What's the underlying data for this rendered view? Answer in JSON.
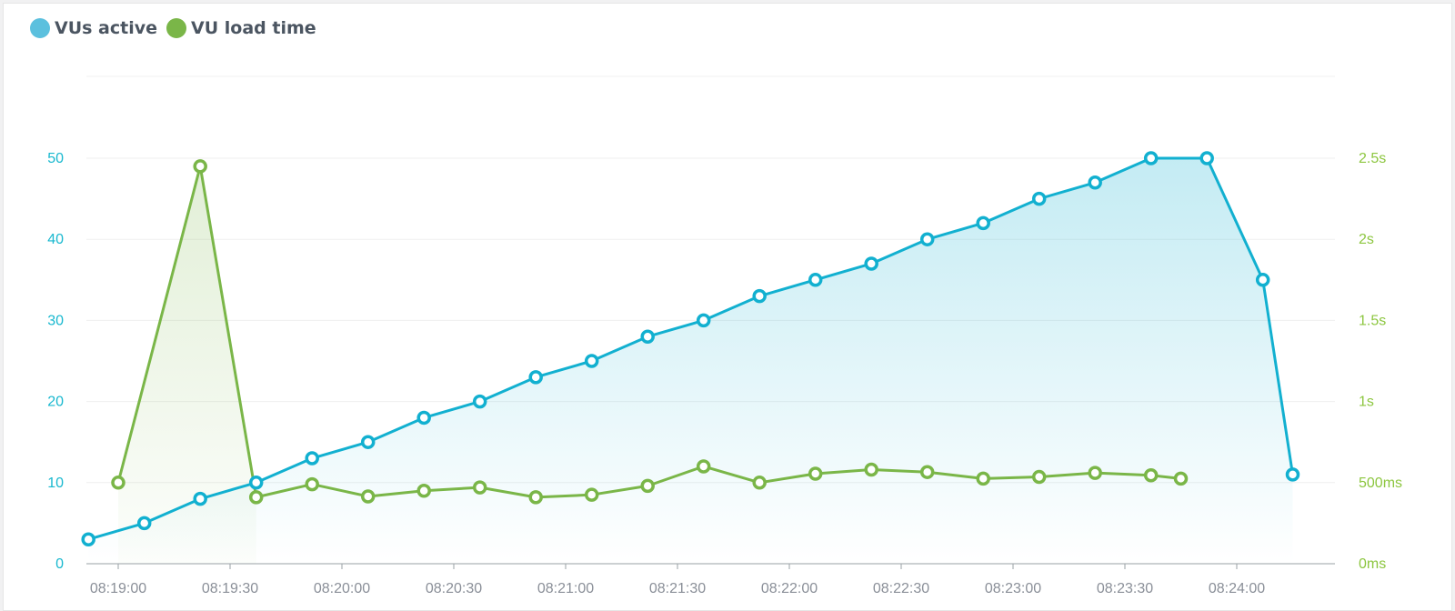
{
  "legend": [
    {
      "label": "VUs active",
      "color": "#5bc0de"
    },
    {
      "label": "VU load time",
      "color": "#7ab648"
    }
  ],
  "colors": {
    "vus": "#12b0d0",
    "load": "#7ab648",
    "leftAxis": "#18b8cf",
    "rightAxis": "#8cc63f",
    "xAxis": "#8a8f98"
  },
  "chart_data": {
    "type": "line",
    "x_label_ticks": [
      "08:19:00",
      "08:19:30",
      "08:20:00",
      "08:20:30",
      "08:21:00",
      "08:21:30",
      "08:22:00",
      "08:22:30",
      "08:23:00",
      "08:23:30",
      "08:24:00"
    ],
    "y_left": {
      "ticks": [
        "0",
        "10",
        "20",
        "30",
        "40",
        "50"
      ],
      "range": [
        0,
        60
      ]
    },
    "y_right": {
      "ticks": [
        "0ms",
        "500ms",
        "1s",
        "1.5s",
        "2s",
        "2.5s"
      ],
      "range_ms": [
        0,
        3000
      ]
    },
    "series": [
      {
        "name": "VUs active",
        "axis": "left",
        "area": true,
        "points": [
          [
            "08:18:52",
            3
          ],
          [
            "08:19:07",
            5
          ],
          [
            "08:19:22",
            8
          ],
          [
            "08:19:37",
            10
          ],
          [
            "08:19:52",
            13
          ],
          [
            "08:20:07",
            15
          ],
          [
            "08:20:22",
            18
          ],
          [
            "08:20:37",
            20
          ],
          [
            "08:20:52",
            23
          ],
          [
            "08:21:07",
            25
          ],
          [
            "08:21:22",
            28
          ],
          [
            "08:21:37",
            30
          ],
          [
            "08:21:52",
            33
          ],
          [
            "08:22:07",
            35
          ],
          [
            "08:22:22",
            37
          ],
          [
            "08:22:37",
            40
          ],
          [
            "08:22:52",
            42
          ],
          [
            "08:23:07",
            45
          ],
          [
            "08:23:22",
            47
          ],
          [
            "08:23:37",
            50
          ],
          [
            "08:23:52",
            50
          ],
          [
            "08:24:07",
            35
          ],
          [
            "08:24:15",
            11
          ]
        ]
      },
      {
        "name": "VU load time",
        "axis": "right",
        "area": "spike-only",
        "points": [
          [
            "08:19:00",
            500
          ],
          [
            "08:19:22",
            2450
          ],
          [
            "08:19:37",
            410
          ],
          [
            "08:19:52",
            490
          ],
          [
            "08:20:07",
            415
          ],
          [
            "08:20:22",
            450
          ],
          [
            "08:20:37",
            470
          ],
          [
            "08:20:52",
            410
          ],
          [
            "08:21:07",
            425
          ],
          [
            "08:21:22",
            480
          ],
          [
            "08:21:37",
            600
          ],
          [
            "08:21:52",
            500
          ],
          [
            "08:22:07",
            555
          ],
          [
            "08:22:22",
            580
          ],
          [
            "08:22:37",
            565
          ],
          [
            "08:22:52",
            525
          ],
          [
            "08:23:07",
            535
          ],
          [
            "08:23:22",
            560
          ],
          [
            "08:23:37",
            545
          ],
          [
            "08:23:45",
            525
          ]
        ]
      }
    ]
  }
}
